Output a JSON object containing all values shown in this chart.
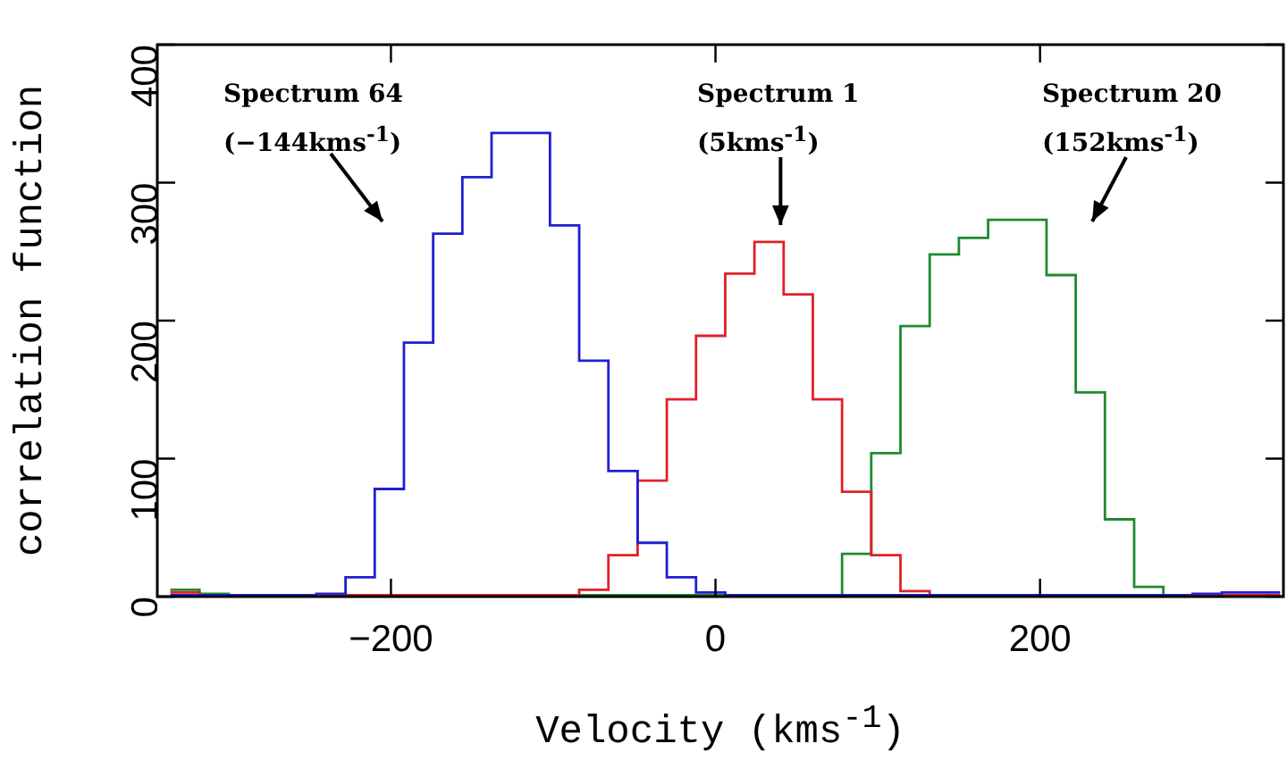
{
  "chart_data": {
    "type": "histogram",
    "xlabel": "Velocity (kms$^{-1}$)",
    "ylabel": "correlation function",
    "annotations": [
      "Spectrum 64\n(−144kms$^{-1}$)",
      "Spectrum 1\n(5kms$^{-1}$)",
      "Spectrum 20\n(152kms$^{-1}$)"
    ],
    "bins": [
      -336,
      -318,
      -300,
      -282,
      -264,
      -246,
      -228,
      -210,
      -192,
      -174,
      -156,
      -138,
      -120,
      -102,
      -84,
      -66,
      -48,
      -30,
      -12,
      6,
      24,
      42,
      60,
      78,
      96,
      114,
      132,
      150,
      168,
      186,
      204,
      222,
      240,
      258,
      276,
      294,
      312,
      330,
      348
    ],
    "series": [
      {
        "color": "#2020d0",
        "values": [
          1,
          1,
          1,
          1,
          1,
          2,
          14,
          78,
          184,
          263,
          304,
          336,
          336,
          269,
          171,
          91,
          39,
          14,
          3,
          1,
          1,
          1,
          1,
          1,
          1,
          1,
          1,
          1,
          1,
          1,
          1,
          1,
          1,
          1,
          1,
          2,
          3,
          3
        ]
      },
      {
        "color": "#e0202a",
        "values": [
          3,
          1,
          1,
          1,
          1,
          1,
          1,
          1,
          1,
          1,
          1,
          1,
          1,
          1,
          5,
          30,
          84,
          143,
          189,
          234,
          257,
          219,
          143,
          76,
          30,
          4,
          1,
          1,
          1,
          1,
          1,
          1,
          1,
          1,
          1,
          1,
          1,
          1
        ]
      },
      {
        "color": "#208a30",
        "values": [
          5,
          2,
          1,
          1,
          1,
          1,
          1,
          1,
          1,
          1,
          1,
          1,
          1,
          1,
          1,
          1,
          1,
          1,
          1,
          1,
          1,
          1,
          1,
          31,
          104,
          196,
          248,
          260,
          273,
          273,
          233,
          148,
          56,
          7,
          1,
          1,
          1,
          1
        ]
      }
    ],
    "xlim": [
      -344,
      350
    ],
    "xticks": [
      -200,
      0,
      200
    ],
    "ylim": [
      0,
      400
    ],
    "yticks": [
      0,
      100,
      200,
      300,
      400
    ],
    "grid": false,
    "legend": false
  }
}
